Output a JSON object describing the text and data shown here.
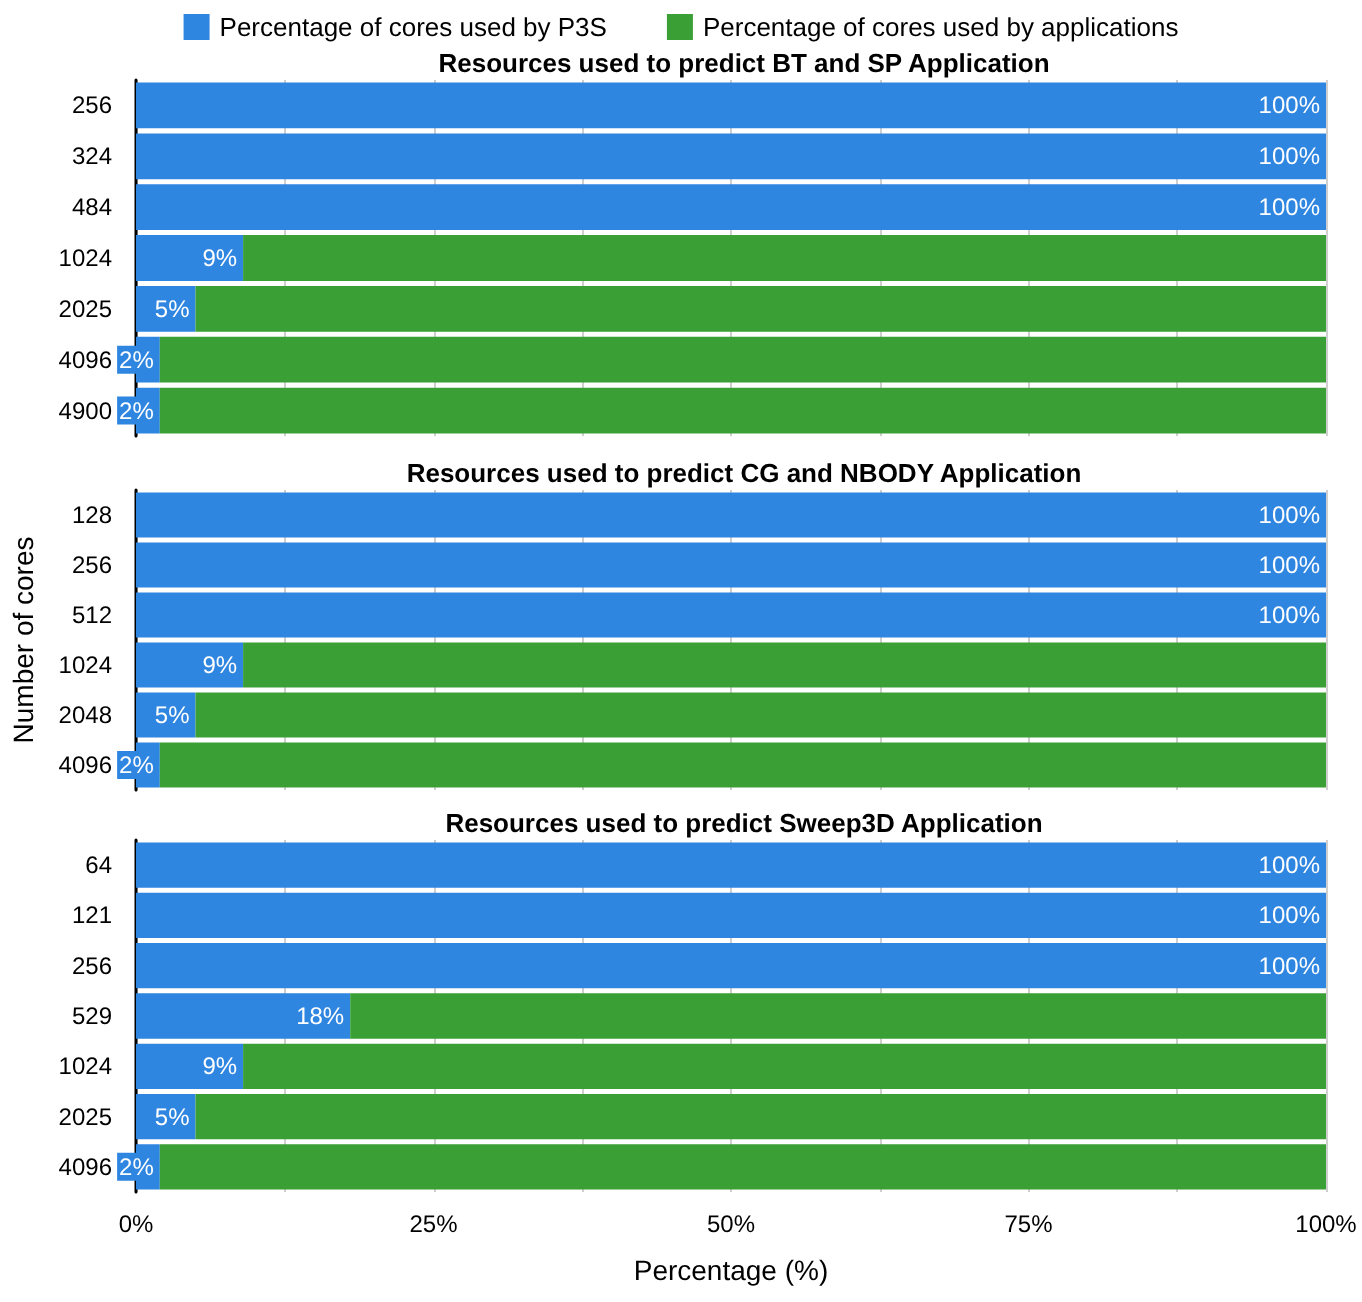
{
  "chart_data": [
    {
      "type": "bar",
      "orientation": "horizontal",
      "stacked": true,
      "title": "Resources used to predict BT and SP Application",
      "categories": [
        "256",
        "324",
        "484",
        "1024",
        "2025",
        "4096",
        "4900"
      ],
      "series": [
        {
          "name": "Percentage of cores used by P3S",
          "color": "#2f86e0",
          "values": [
            100,
            100,
            100,
            9,
            5,
            2,
            2
          ],
          "value_labels": [
            "100%",
            "100%",
            "100%",
            "9%",
            "5%",
            "2%",
            "2%"
          ]
        },
        {
          "name": "Percentage of cores used by applications",
          "color": "#3aa036",
          "values": [
            0,
            0,
            0,
            91,
            95,
            98,
            98
          ]
        }
      ],
      "xlim": [
        0,
        100
      ],
      "xticks": [
        {
          "value": 0,
          "label": null
        },
        {
          "value": 12.5,
          "label": null
        },
        {
          "value": 25,
          "label": null
        },
        {
          "value": 37.5,
          "label": null
        },
        {
          "value": 50,
          "label": null
        },
        {
          "value": 62.5,
          "label": null
        },
        {
          "value": 75,
          "label": null
        },
        {
          "value": 87.5,
          "label": null
        },
        {
          "value": 100,
          "label": null
        }
      ],
      "grid": "x",
      "legend": "top",
      "tick_labels": "y"
    },
    {
      "type": "bar",
      "orientation": "horizontal",
      "stacked": true,
      "title": "Resources used to predict CG and NBODY Application",
      "ylabel": "Number of cores",
      "categories": [
        "128",
        "256",
        "512",
        "1024",
        "2048",
        "4096"
      ],
      "series": [
        {
          "color": "#2f86e0",
          "values": [
            100,
            100,
            100,
            9,
            5,
            2
          ],
          "value_labels": [
            "100%",
            "100%",
            "100%",
            "9%",
            "5%",
            "2%"
          ]
        },
        {
          "color": "#3aa036",
          "values": [
            0,
            0,
            0,
            91,
            95,
            98
          ]
        }
      ],
      "xlim": [
        0,
        100
      ],
      "xticks": [
        {
          "value": 0,
          "label": null
        },
        {
          "value": 12.5,
          "label": null
        },
        {
          "value": 25,
          "label": null
        },
        {
          "value": 37.5,
          "label": null
        },
        {
          "value": 50,
          "label": null
        },
        {
          "value": 62.5,
          "label": null
        },
        {
          "value": 75,
          "label": null
        },
        {
          "value": 87.5,
          "label": null
        },
        {
          "value": 100,
          "label": null
        }
      ],
      "grid": "x",
      "tick_labels": "y"
    },
    {
      "type": "bar",
      "orientation": "horizontal",
      "stacked": true,
      "title": "Resources used to predict Sweep3D Application",
      "xlabel": "Percentage (%)",
      "categories": [
        "64",
        "121",
        "256",
        "529",
        "1024",
        "2025",
        "4096"
      ],
      "series": [
        {
          "color": "#2f86e0",
          "values": [
            100,
            100,
            100,
            18,
            9,
            5,
            2
          ],
          "value_labels": [
            "100%",
            "100%",
            "100%",
            "18%",
            "9%",
            "5%",
            "2%"
          ]
        },
        {
          "color": "#3aa036",
          "values": [
            0,
            0,
            0,
            82,
            91,
            95,
            98
          ]
        }
      ],
      "xlim": [
        0,
        100
      ],
      "xticks": [
        {
          "value": 0,
          "label": "0%"
        },
        {
          "value": 12.5,
          "label": null
        },
        {
          "value": 25,
          "label": "25%"
        },
        {
          "value": 37.5,
          "label": null
        },
        {
          "value": 50,
          "label": "50%"
        },
        {
          "value": 62.5,
          "label": null
        },
        {
          "value": 75,
          "label": "75%"
        },
        {
          "value": 87.5,
          "label": null
        },
        {
          "value": 100,
          "label": "100%"
        }
      ],
      "grid": "x"
    }
  ]
}
